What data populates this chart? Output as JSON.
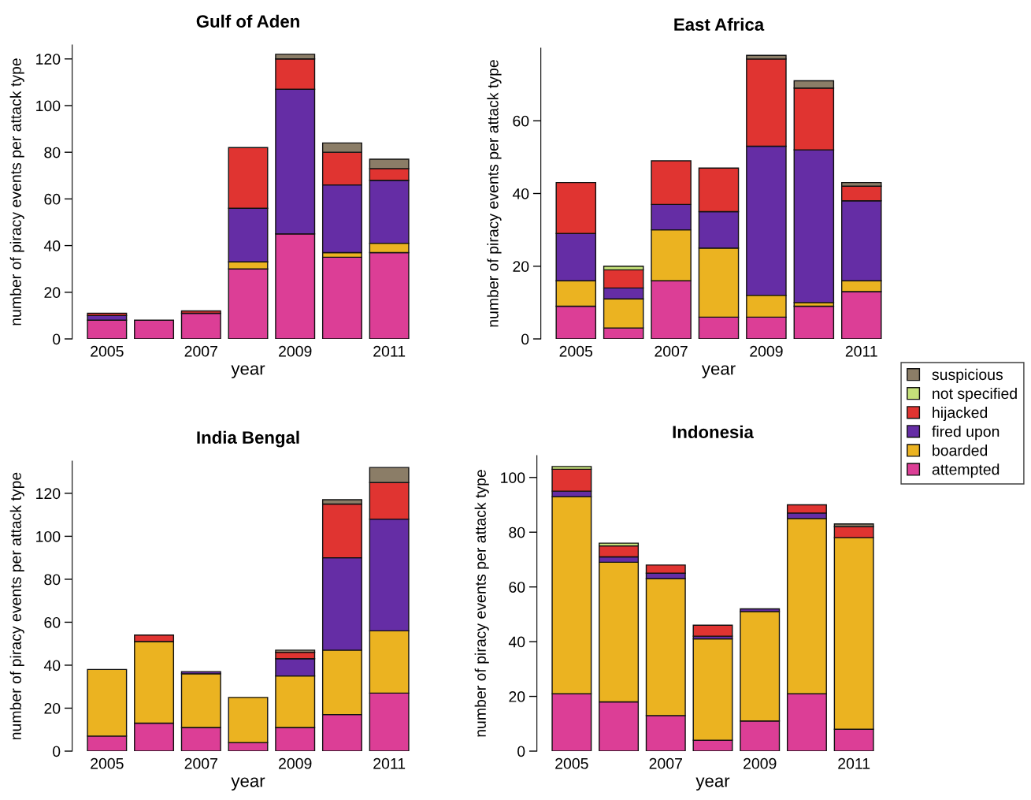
{
  "chart_data": [
    {
      "type": "bar",
      "stacked": true,
      "title": "Gulf of Aden",
      "xlabel": "year",
      "ylabel": "number of piracy events per attack type",
      "categories": [
        "2005",
        null,
        "2007",
        null,
        "2009",
        null,
        "2011"
      ],
      "ylim": [
        0,
        126
      ],
      "yticks": [
        0,
        20,
        40,
        60,
        80,
        100,
        120
      ],
      "series": [
        {
          "color": "#dc3e96",
          "values": [
            8,
            8,
            11,
            30,
            45,
            35,
            37
          ]
        },
        {
          "color": "#ebb321",
          "values": [
            null,
            null,
            null,
            3,
            null,
            2,
            4
          ]
        },
        {
          "color": "#652da5",
          "values": [
            2,
            null,
            null,
            23,
            62,
            29,
            27
          ]
        },
        {
          "color": "#e03431",
          "values": [
            1,
            null,
            1,
            26,
            13,
            14,
            5
          ]
        },
        {
          "color": "#8b7d67",
          "values": [
            null,
            null,
            null,
            null,
            2,
            4,
            4
          ]
        }
      ]
    },
    {
      "type": "bar",
      "stacked": true,
      "title": "East Africa",
      "xlabel": "year",
      "ylabel": "number of piracy events per attack type",
      "categories": [
        "2005",
        null,
        "2007",
        null,
        "2009",
        null,
        "2011"
      ],
      "ylim": [
        0,
        80
      ],
      "yticks": [
        0,
        20,
        40,
        60
      ],
      "legend": "right",
      "series": [
        {
          "name": "attempted",
          "color": "#dc3e96",
          "values": [
            9,
            3,
            16,
            6,
            6,
            9,
            13
          ]
        },
        {
          "name": "boarded",
          "color": "#ebb321",
          "values": [
            7,
            8,
            14,
            19,
            6,
            1,
            3
          ]
        },
        {
          "name": "fired upon",
          "color": "#652da5",
          "values": [
            13,
            3,
            7,
            10,
            41,
            42,
            22
          ]
        },
        {
          "name": "hijacked",
          "color": "#e03431",
          "values": [
            14,
            5,
            12,
            12,
            24,
            17,
            4
          ]
        },
        {
          "name": "not specified",
          "color": "#c5e17a",
          "values": [
            null,
            1,
            null,
            null,
            null,
            null,
            null
          ]
        },
        {
          "name": "suspicious",
          "color": "#8b7d67",
          "values": [
            null,
            null,
            null,
            null,
            1,
            2,
            1
          ]
        }
      ]
    },
    {
      "type": "bar",
      "stacked": true,
      "title": "India Bengal",
      "xlabel": "year",
      "ylabel": "number of piracy events per attack type",
      "categories": [
        "2005",
        null,
        "2007",
        null,
        "2009",
        null,
        "2011"
      ],
      "ylim": [
        0,
        135
      ],
      "yticks": [
        0,
        20,
        40,
        60,
        80,
        100,
        120
      ],
      "series": [
        {
          "color": "#dc3e96",
          "values": [
            7,
            13,
            11,
            4,
            11,
            17,
            27
          ]
        },
        {
          "color": "#ebb321",
          "values": [
            31,
            38,
            25,
            21,
            24,
            30,
            29
          ]
        },
        {
          "color": "#652da5",
          "values": [
            null,
            null,
            1,
            null,
            8,
            43,
            52
          ]
        },
        {
          "color": "#e03431",
          "values": [
            null,
            3,
            null,
            null,
            3,
            25,
            17
          ]
        },
        {
          "color": "#8b7d67",
          "values": [
            null,
            null,
            null,
            null,
            1,
            2,
            7
          ]
        }
      ]
    },
    {
      "type": "bar",
      "stacked": true,
      "title": "Indonesia",
      "xlabel": "year",
      "ylabel": "number of piracy events per attack type",
      "categories": [
        "2005",
        null,
        "2007",
        null,
        "2009",
        null,
        "2011"
      ],
      "ylim": [
        0,
        108
      ],
      "yticks": [
        0,
        20,
        40,
        60,
        80,
        100
      ],
      "series": [
        {
          "color": "#dc3e96",
          "values": [
            21,
            18,
            13,
            4,
            11,
            21,
            8
          ]
        },
        {
          "color": "#ebb321",
          "values": [
            72,
            51,
            50,
            37,
            40,
            64,
            70
          ]
        },
        {
          "color": "#652da5",
          "values": [
            2,
            2,
            2,
            1,
            1,
            2,
            null
          ]
        },
        {
          "color": "#e03431",
          "values": [
            8,
            4,
            3,
            4,
            null,
            3,
            4
          ]
        },
        {
          "color": "#c5e17a",
          "values": [
            1,
            1,
            null,
            null,
            null,
            null,
            null
          ]
        },
        {
          "color": "#8b7d67",
          "values": [
            null,
            null,
            null,
            null,
            null,
            null,
            1
          ]
        }
      ]
    }
  ]
}
